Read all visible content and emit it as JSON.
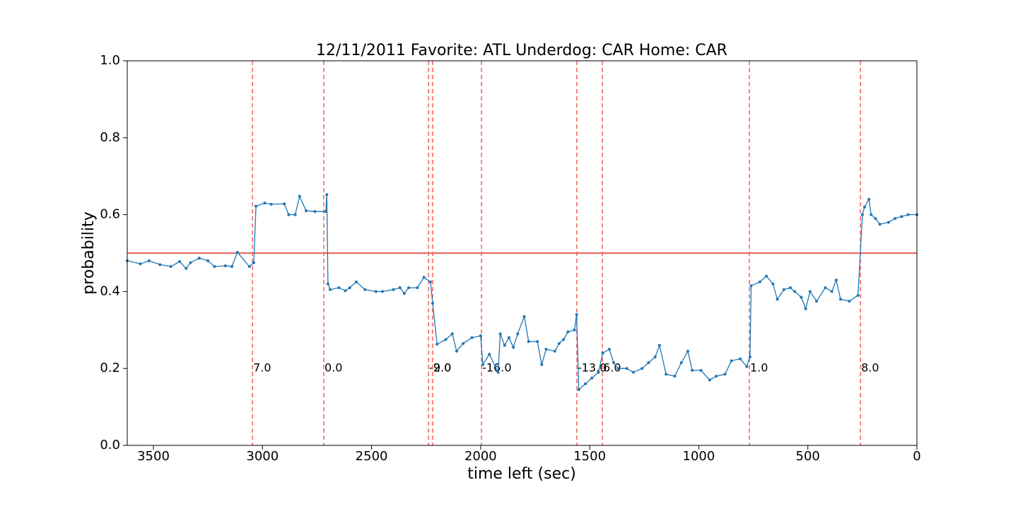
{
  "chart_data": {
    "type": "line",
    "title": "12/11/2011 Favorite: ATL Underdog: CAR Home: CAR",
    "x_label": "time left (sec)",
    "y_label": "probability",
    "xlim": [
      3620,
      0
    ],
    "xticks": [
      3500,
      3000,
      2500,
      2000,
      1500,
      1000,
      500,
      0
    ],
    "ylim": [
      0,
      1
    ],
    "yticks": [
      {
        "value": 0,
        "label": "0.0"
      },
      {
        "value": 0.2,
        "label": "0.2"
      },
      {
        "value": 0.4,
        "label": "0.4"
      },
      {
        "value": 0.6,
        "label": "0.6"
      },
      {
        "value": 0.8,
        "label": "0.8"
      },
      {
        "value": 1,
        "label": "1.0"
      }
    ],
    "reference_line": 0.5,
    "reference_color": "#e0302a",
    "events": {
      "color": "#f0605a",
      "label_y": 0.2,
      "x": [
        3046,
        2719,
        2239,
        2220,
        1996,
        1559,
        1442,
        768,
        259
      ],
      "labels": [
        "7.0",
        "0.0",
        "-2.0",
        "9.0",
        "-16.0",
        "-13.0",
        "6.0",
        "1.0",
        "8.0"
      ]
    },
    "series": [
      {
        "color": "#1f77b4",
        "x": [
          3620,
          3560,
          3520,
          3470,
          3420,
          3380,
          3350,
          3330,
          3290,
          3250,
          3220,
          3170,
          3140,
          3115,
          3060,
          3040,
          3030,
          2990,
          2960,
          2900,
          2880,
          2850,
          2830,
          2800,
          2760,
          2710,
          2705,
          2700,
          2690,
          2650,
          2620,
          2600,
          2570,
          2530,
          2480,
          2450,
          2400,
          2370,
          2350,
          2330,
          2290,
          2260,
          2230,
          2220,
          2200,
          2160,
          2130,
          2110,
          2080,
          2040,
          2000,
          1990,
          1960,
          1920,
          1910,
          1890,
          1870,
          1850,
          1830,
          1800,
          1780,
          1740,
          1720,
          1700,
          1660,
          1640,
          1620,
          1600,
          1570,
          1560,
          1550,
          1520,
          1490,
          1460,
          1440,
          1410,
          1390,
          1370,
          1330,
          1300,
          1260,
          1230,
          1200,
          1180,
          1150,
          1110,
          1080,
          1050,
          1030,
          990,
          950,
          920,
          880,
          850,
          810,
          780,
          765,
          760,
          720,
          690,
          660,
          640,
          610,
          580,
          560,
          530,
          510,
          490,
          460,
          420,
          390,
          370,
          350,
          310,
          270,
          250,
          240,
          220,
          210,
          190,
          170,
          130,
          100,
          70,
          40,
          0
        ],
        "values": [
          0.48,
          0.472,
          0.48,
          0.47,
          0.465,
          0.478,
          0.46,
          0.475,
          0.487,
          0.48,
          0.465,
          0.467,
          0.465,
          0.502,
          0.465,
          0.475,
          0.622,
          0.63,
          0.627,
          0.628,
          0.6,
          0.6,
          0.648,
          0.61,
          0.608,
          0.608,
          0.652,
          0.42,
          0.405,
          0.41,
          0.402,
          0.41,
          0.425,
          0.405,
          0.4,
          0.4,
          0.405,
          0.41,
          0.395,
          0.41,
          0.41,
          0.437,
          0.425,
          0.37,
          0.263,
          0.275,
          0.29,
          0.245,
          0.265,
          0.28,
          0.285,
          0.21,
          0.237,
          0.19,
          0.29,
          0.26,
          0.28,
          0.255,
          0.29,
          0.335,
          0.27,
          0.27,
          0.21,
          0.25,
          0.245,
          0.265,
          0.275,
          0.295,
          0.3,
          0.34,
          0.145,
          0.16,
          0.175,
          0.19,
          0.24,
          0.25,
          0.215,
          0.2,
          0.2,
          0.19,
          0.2,
          0.215,
          0.23,
          0.26,
          0.185,
          0.18,
          0.215,
          0.245,
          0.195,
          0.195,
          0.17,
          0.18,
          0.185,
          0.22,
          0.225,
          0.205,
          0.23,
          0.415,
          0.425,
          0.44,
          0.42,
          0.38,
          0.405,
          0.41,
          0.4,
          0.385,
          0.355,
          0.4,
          0.375,
          0.41,
          0.4,
          0.43,
          0.38,
          0.375,
          0.39,
          0.6,
          0.62,
          0.64,
          0.6,
          0.59,
          0.575,
          0.58,
          0.59,
          0.595,
          0.6,
          0.6
        ]
      }
    ]
  }
}
